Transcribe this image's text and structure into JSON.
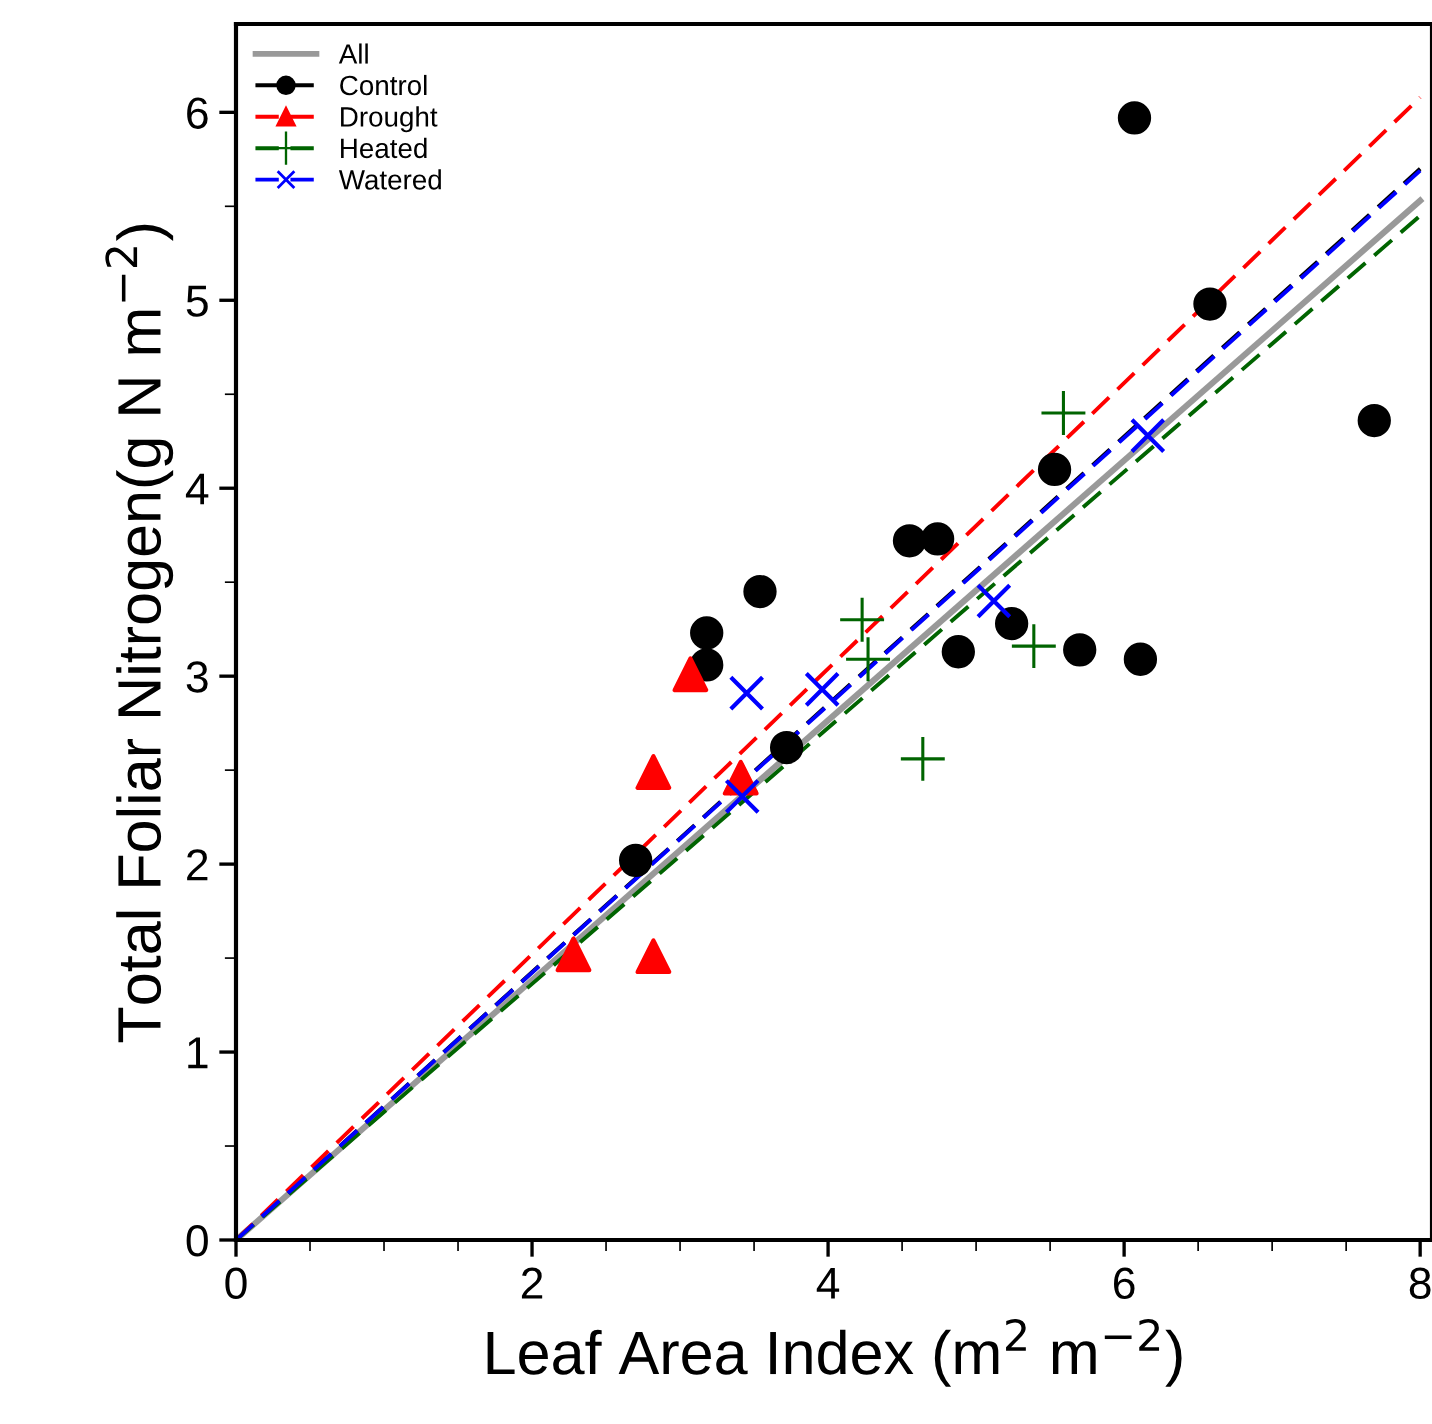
{
  "chart_data": {
    "type": "scatter",
    "xlabel": "Leaf Area Index (m$^{2}$ m$^{−2}$)",
    "ylabel": "Total Foliar Nitrogen(g N m$^{−2}$)",
    "xlim": [
      0,
      8.08
    ],
    "ylim": [
      0,
      6.47
    ],
    "xticks": [
      0,
      2,
      4,
      6,
      8
    ],
    "yticks": [
      0,
      1,
      2,
      3,
      4,
      5,
      6
    ],
    "grid": false,
    "legend": "top left",
    "series": [
      {
        "name": "All",
        "type": "line",
        "color": "#999999",
        "line_style": "solid",
        "marker": "none",
        "x": [
          0,
          8
        ],
        "values": [
          0,
          5.53
        ]
      },
      {
        "name": "Control",
        "color": "#000000",
        "marker": "circle",
        "x": [
          2.7,
          3.18,
          3.18,
          3.54,
          3.72,
          4.55,
          4.74,
          4.88,
          5.24,
          5.53,
          5.7,
          6.07,
          6.11,
          6.58,
          7.69
        ],
        "values": [
          2.02,
          3.23,
          3.06,
          3.45,
          2.62,
          3.72,
          3.73,
          3.13,
          3.28,
          4.1,
          3.14,
          5.97,
          3.09,
          4.98,
          4.36
        ]
      },
      {
        "type": "line",
        "color": "#000000",
        "line_style": "dashed",
        "marker": "none",
        "x": [
          0,
          8
        ],
        "values": [
          0,
          5.7
        ]
      },
      {
        "name": "Drought",
        "color": "#ff0000",
        "marker": "triangle",
        "x": [
          2.28,
          2.82,
          2.82,
          3.07,
          3.41
        ],
        "values": [
          1.52,
          2.49,
          1.51,
          3.01,
          2.46
        ]
      },
      {
        "type": "line",
        "color": "#ff0000",
        "line_style": "dashed",
        "marker": "none",
        "x": [
          0,
          8
        ],
        "values": [
          0,
          6.08
        ]
      },
      {
        "name": "Heated",
        "color": "#006400",
        "marker": "cross",
        "x": [
          4.23,
          4.27,
          4.64,
          5.59,
          5.39
        ],
        "values": [
          3.3,
          3.09,
          2.56,
          4.4,
          3.16
        ]
      },
      {
        "type": "line",
        "color": "#006400",
        "line_style": "dashed",
        "marker": "none",
        "x": [
          0,
          8
        ],
        "values": [
          0,
          5.45
        ]
      },
      {
        "name": "Watered",
        "color": "#0000ff",
        "x": [
          3.45,
          3.96,
          3.42,
          5.12,
          6.16
        ],
        "values": [
          2.91,
          2.93,
          2.36,
          3.4,
          4.28
        ]
      },
      {
        "type": "line",
        "color": "#0000ff",
        "line_style": "dashed",
        "marker": "none",
        "x": [
          0,
          8
        ],
        "values": [
          0,
          5.69
        ]
      }
    ]
  }
}
